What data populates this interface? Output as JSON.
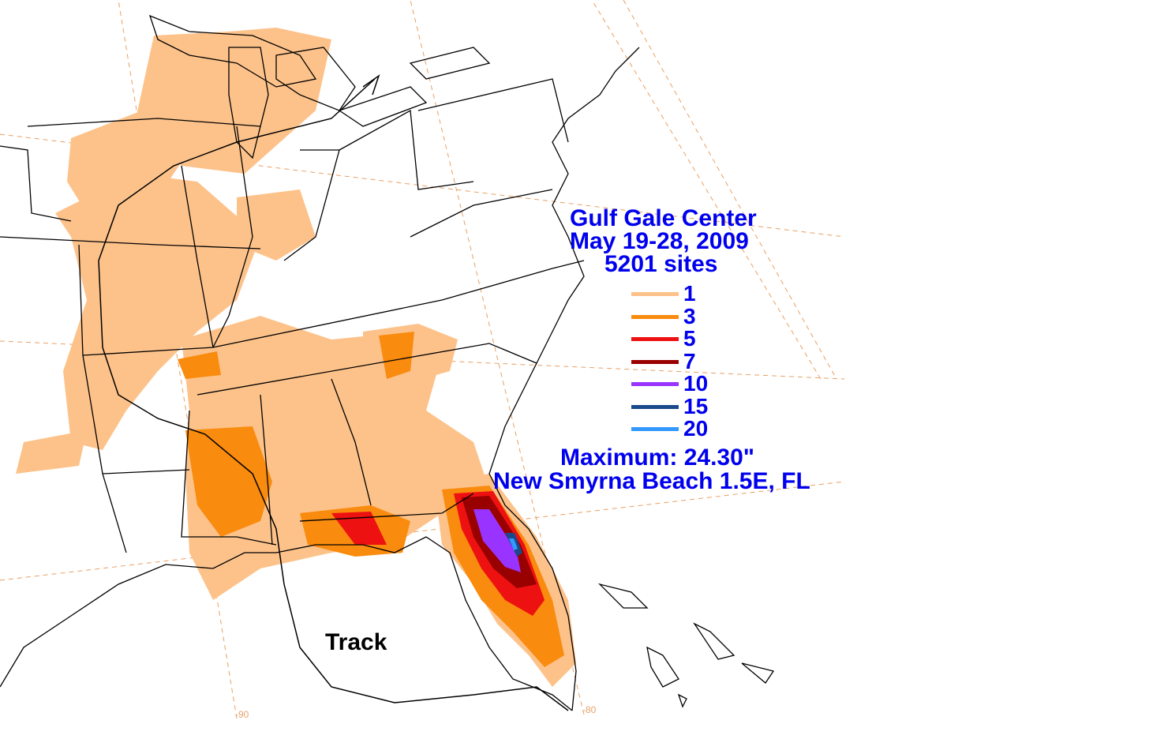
{
  "map": {
    "title_lines": [
      "Gulf Gale Center",
      "May 19-28, 2009",
      "5201 sites"
    ],
    "legend": {
      "unit": "inches",
      "items": [
        {
          "label": "1",
          "color": "#fdc28a"
        },
        {
          "label": "3",
          "color": "#f98b0e"
        },
        {
          "label": "5",
          "color": "#ee1111"
        },
        {
          "label": "7",
          "color": "#990000"
        },
        {
          "label": "10",
          "color": "#9933ff"
        },
        {
          "label": "15",
          "color": "#1a4a8c"
        },
        {
          "label": "20",
          "color": "#3399ff"
        }
      ]
    },
    "maximum_label": "Maximum: 24.30\"",
    "maximum_location": "New Smyrna Beach 1.5E, FL",
    "track_label": "Track",
    "longitude_labels": [
      "-90",
      "-80"
    ],
    "colors": {
      "boundary": "#000000",
      "graticule": "#e8a064",
      "text": "#0000ee"
    }
  }
}
